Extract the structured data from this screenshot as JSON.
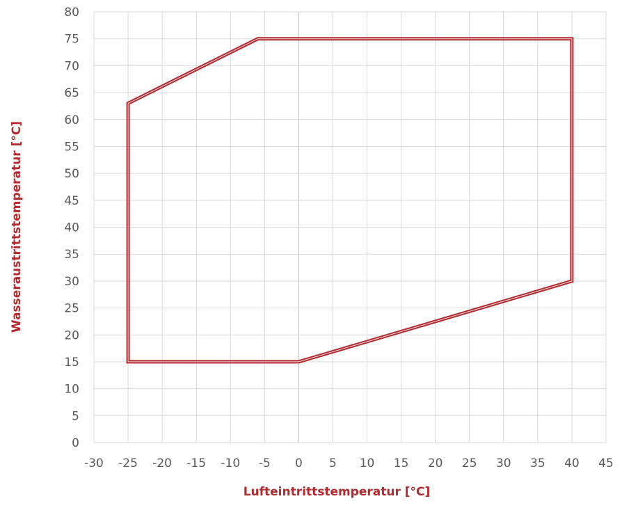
{
  "chart_data": {
    "type": "line",
    "title": "",
    "xlabel": "Lufteintrittstemperatur [°C]",
    "ylabel": "Wasseraustrittstemperatur [°C]",
    "xlim": [
      -30,
      45
    ],
    "ylim": [
      0,
      80
    ],
    "x_ticks": [
      -30,
      -25,
      -20,
      -15,
      -10,
      -5,
      0,
      5,
      10,
      15,
      20,
      25,
      30,
      35,
      40,
      45
    ],
    "y_ticks": [
      0,
      5,
      10,
      15,
      20,
      25,
      30,
      35,
      40,
      45,
      50,
      55,
      60,
      65,
      70,
      75,
      80
    ],
    "grid": true,
    "legend": "none",
    "series": [
      {
        "closed": true,
        "color": "#b22a2e",
        "points": [
          {
            "x": -25,
            "y": 15
          },
          {
            "x": -25,
            "y": 63
          },
          {
            "x": -6,
            "y": 75
          },
          {
            "x": 40,
            "y": 75
          },
          {
            "x": 40,
            "y": 30
          },
          {
            "x": 0,
            "y": 15
          }
        ]
      }
    ],
    "colors": {
      "series": "#b22a2e",
      "grid": "#d9d9d9",
      "zero_line": "#bfbfbf",
      "tick_text": "#595959",
      "axis_title": "#b22a2e"
    }
  }
}
